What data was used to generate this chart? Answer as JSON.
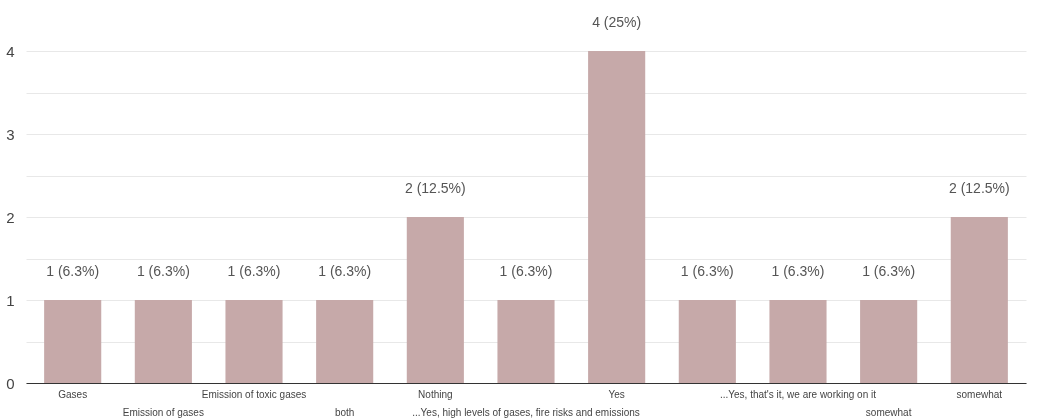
{
  "chart_data": {
    "type": "bar",
    "categories": [
      "Gases",
      "Emission of gases",
      "Emission of toxic gases",
      "both",
      "Nothing",
      "...Yes, high levels of gases, fire risks and emissions",
      "Yes",
      null,
      "...Yes, that's it, we are working on it",
      "somewhat",
      "somewhat"
    ],
    "values": [
      1,
      1,
      1,
      1,
      2,
      1,
      4,
      1,
      1,
      1,
      2
    ],
    "value_labels": [
      "1 (6.3%)",
      "1 (6.3%)",
      "1 (6.3%)",
      "1 (6.3%)",
      "2 (12.5%)",
      "1 (6.3%)",
      "4 (25%)",
      "1 (6.3%)",
      "1 (6.3%)",
      "1 (6.3%)",
      "2 (12.5%)"
    ],
    "color": "#c6a9a9",
    "ylim": [
      0,
      4
    ],
    "yticks": [
      0,
      {
        "value": 0.5,
        "label": null
      },
      1,
      {
        "value": 1.5,
        "label": null
      },
      2,
      {
        "value": 2.5,
        "label": null
      },
      3,
      {
        "value": 3.5,
        "label": null
      },
      4
    ],
    "grid": true
  }
}
